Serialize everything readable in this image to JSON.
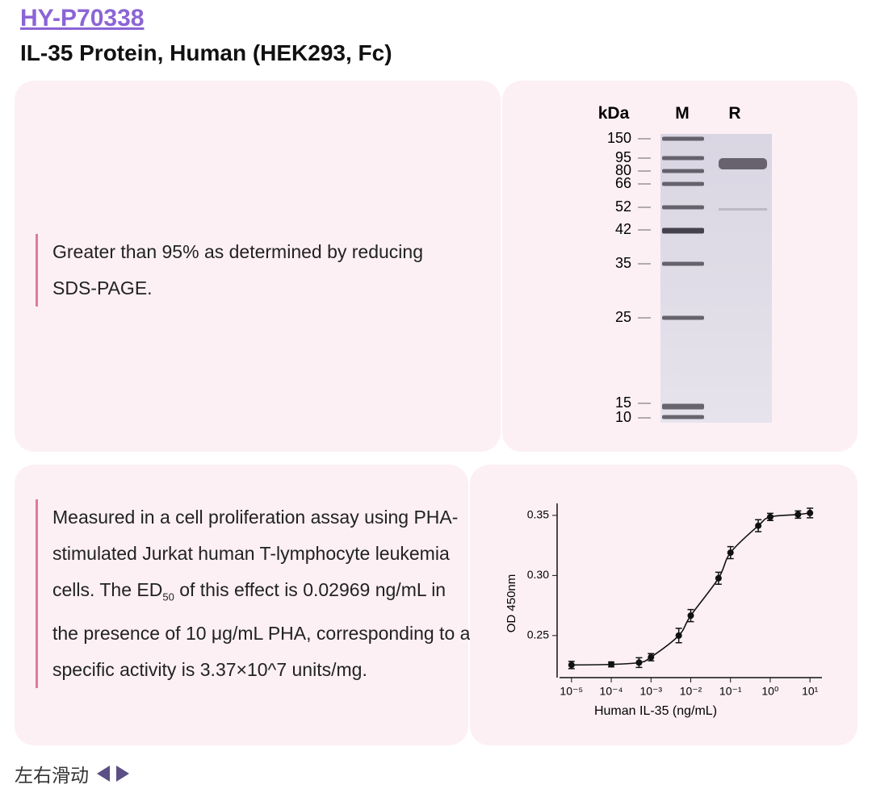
{
  "header": {
    "code": "HY-P70338",
    "title": "IL-35 Protein, Human (HEK293, Fc)"
  },
  "purity": {
    "text": "Greater than 95% as determined by reducing SDS-PAGE."
  },
  "gel": {
    "unit": "kDa",
    "lanes": [
      "M",
      "R"
    ],
    "markers": [
      150,
      95,
      80,
      66,
      52,
      42,
      35,
      25,
      15,
      10
    ]
  },
  "activity": {
    "text": [
      "Measured in a cell proliferation assay using PHA-stimulated Jurkat human T-lymphocyte leukemia cells. The ED",
      "50",
      " of this effect is 0.02969 ng/mL in the presence of 10 μg/mL PHA, corresponding to a specific activity is 3.37×10^7 units/mg."
    ]
  },
  "chart_data": {
    "type": "scatter",
    "x_label": "Human IL-35 (ng/mL)",
    "y_label": "OD 450nm",
    "log_x": true,
    "x": [
      1e-05,
      0.0001,
      0.0005,
      0.001,
      0.005,
      0.01,
      0.05,
      0.1,
      0.5,
      1,
      5,
      10
    ],
    "series": [
      {
        "color": "#111111",
        "values": [
          0.2255,
          0.226,
          0.2275,
          0.232,
          0.25,
          0.2666,
          0.2977,
          0.319,
          0.3414,
          0.3487,
          0.3507,
          0.352
        ],
        "errors": [
          0.003,
          0.002,
          0.004,
          0.003,
          0.006,
          0.005,
          0.005,
          0.005,
          0.005,
          0.003,
          0.003,
          0.004
        ]
      }
    ],
    "xlim": [
      5e-06,
      20
    ],
    "ylim": [
      0.215,
      0.36
    ],
    "xticks": [
      {
        "value": 1e-05,
        "label": "10⁻⁵"
      },
      {
        "value": 0.0001,
        "label": "10⁻⁴"
      },
      {
        "value": 0.001,
        "label": "10⁻³"
      },
      {
        "value": 0.01,
        "label": "10⁻²"
      },
      {
        "value": 0.1,
        "label": "10⁻¹"
      },
      {
        "value": 1,
        "label": "10⁰"
      },
      {
        "value": 10,
        "label": "10¹"
      }
    ],
    "yticks": [
      {
        "value": 0.25,
        "label": "0.25"
      },
      {
        "value": 0.3,
        "label": "0.30"
      },
      {
        "value": 0.35,
        "label": "0.35"
      }
    ]
  },
  "footer": {
    "hint": "左右滑动"
  }
}
